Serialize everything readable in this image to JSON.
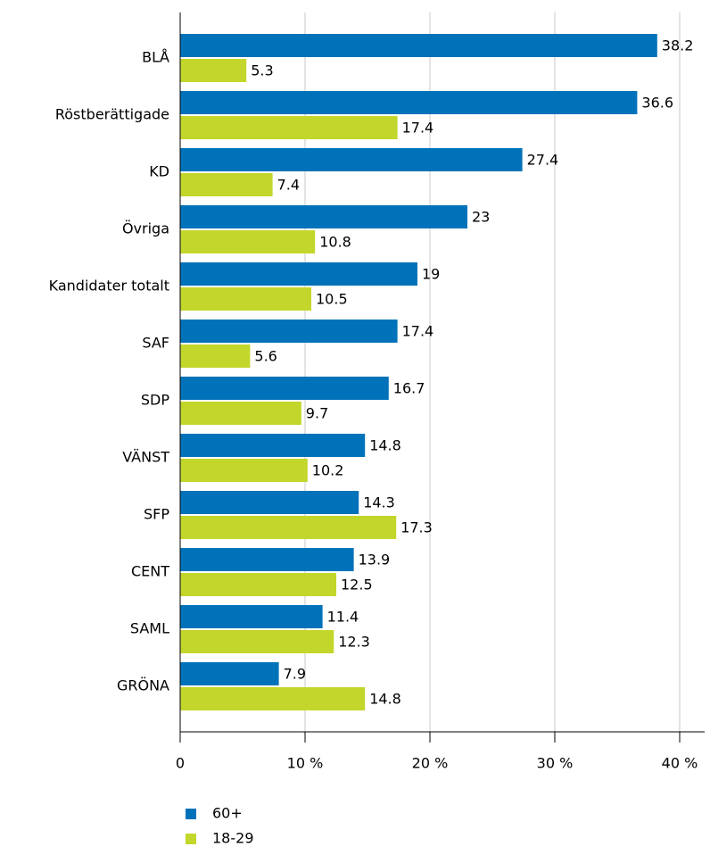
{
  "chart_data": {
    "type": "bar",
    "orientation": "horizontal",
    "categories": [
      "BLÅ",
      "Röstberättigade",
      "KD",
      "Övriga",
      "Kandidater totalt",
      "SAF",
      "SDP",
      "VÄNST",
      "SFP",
      "CENT",
      "SAML",
      "GRÖNA"
    ],
    "series": [
      {
        "name": "60+",
        "color": "#0072b9",
        "values": [
          38.2,
          36.6,
          27.4,
          23,
          19,
          17.4,
          16.7,
          14.8,
          14.3,
          13.9,
          11.4,
          7.9
        ]
      },
      {
        "name": "18-29",
        "color": "#c3d62b",
        "values": [
          5.3,
          17.4,
          7.4,
          10.8,
          10.5,
          5.6,
          9.7,
          10.2,
          17.3,
          12.5,
          12.3,
          14.8
        ]
      }
    ],
    "xlim": [
      0,
      42
    ],
    "xticks": [
      0,
      {
        "value": 10,
        "label": "10 %"
      },
      {
        "value": 20,
        "label": "20 %"
      },
      {
        "value": 30,
        "label": "30 %"
      },
      {
        "value": 40,
        "label": "40 %"
      }
    ],
    "grid": true,
    "legend": "bottom-left"
  }
}
